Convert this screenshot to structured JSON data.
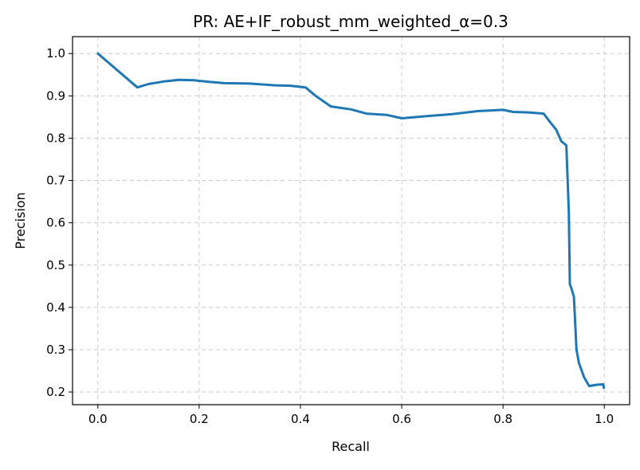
{
  "chart_data": {
    "type": "line",
    "title": "PR: AE+IF_robust_mm_weighted_α=0.3",
    "xlabel": "Recall",
    "ylabel": "Precision",
    "xlim": [
      -0.05,
      1.05
    ],
    "ylim": [
      0.17,
      1.04
    ],
    "x_ticks": [
      0.0,
      0.2,
      0.4,
      0.6,
      0.8,
      1.0
    ],
    "x_tick_labels": [
      "0.0",
      "0.2",
      "0.4",
      "0.6",
      "0.8",
      "1.0"
    ],
    "y_ticks": [
      0.2,
      0.3,
      0.4,
      0.5,
      0.6,
      0.7,
      0.8,
      0.9,
      1.0
    ],
    "y_tick_labels": [
      "0.2",
      "0.3",
      "0.4",
      "0.5",
      "0.6",
      "0.7",
      "0.8",
      "0.9",
      "1.0"
    ],
    "grid": true,
    "legend": "none",
    "series": [
      {
        "color": "#1f77b4",
        "x": [
          0.0,
          0.078,
          0.1,
          0.13,
          0.16,
          0.19,
          0.22,
          0.25,
          0.3,
          0.35,
          0.38,
          0.41,
          0.43,
          0.46,
          0.5,
          0.53,
          0.57,
          0.6,
          0.65,
          0.7,
          0.75,
          0.8,
          0.82,
          0.85,
          0.88,
          0.895,
          0.905,
          0.915,
          0.925,
          0.93,
          0.932,
          0.935,
          0.94,
          0.945,
          0.95,
          0.96,
          0.97,
          0.985,
          0.998,
          0.999
        ],
        "y": [
          1.0,
          0.92,
          0.928,
          0.934,
          0.938,
          0.937,
          0.933,
          0.93,
          0.929,
          0.925,
          0.924,
          0.92,
          0.9,
          0.875,
          0.868,
          0.858,
          0.855,
          0.847,
          0.852,
          0.857,
          0.864,
          0.867,
          0.862,
          0.861,
          0.858,
          0.835,
          0.82,
          0.793,
          0.783,
          0.625,
          0.455,
          0.445,
          0.425,
          0.3,
          0.268,
          0.235,
          0.214,
          0.217,
          0.218,
          0.21
        ]
      }
    ]
  }
}
